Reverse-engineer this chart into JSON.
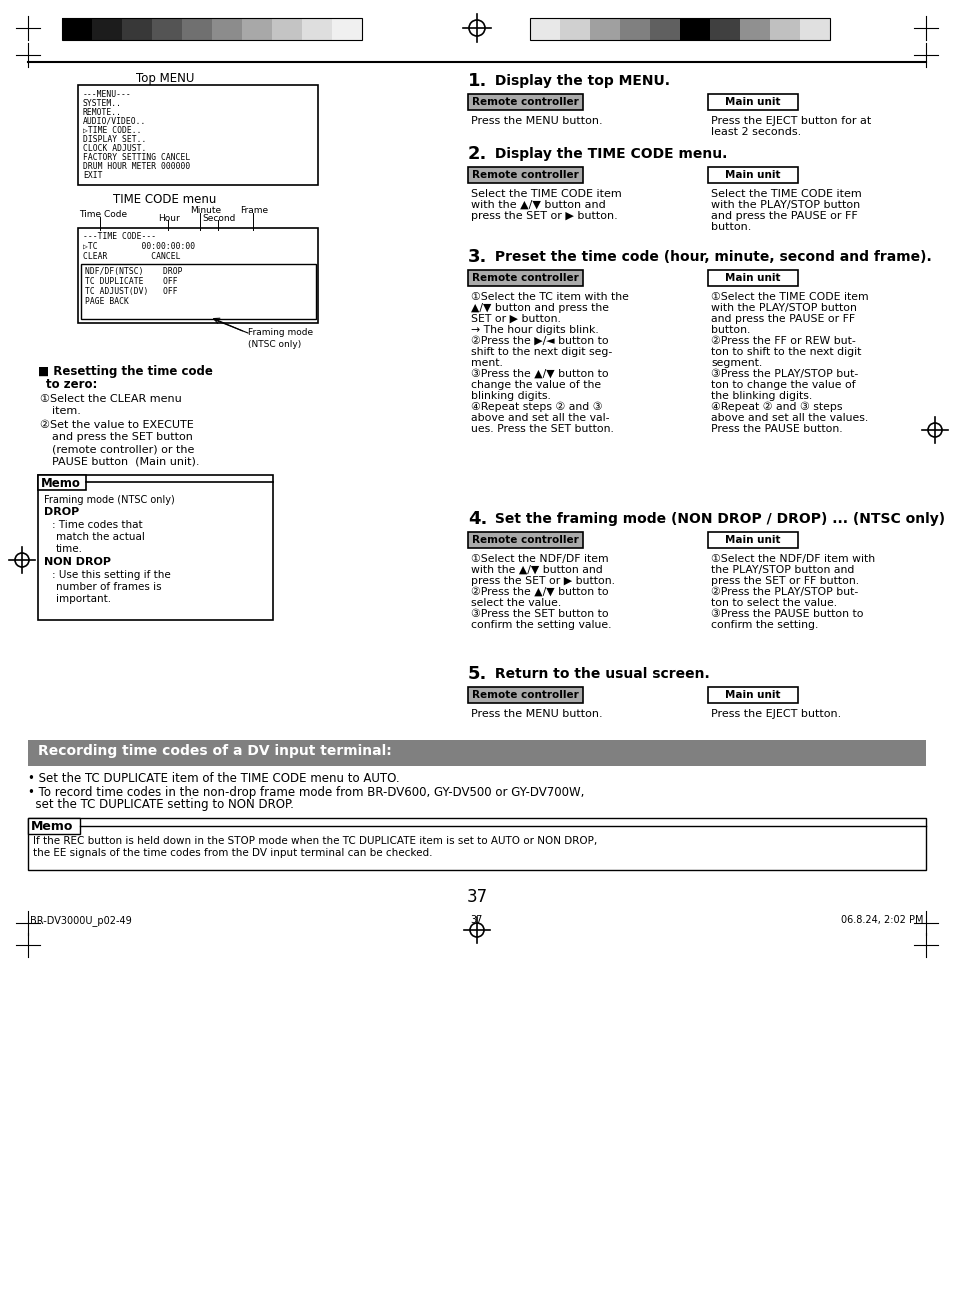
{
  "page_number": "37",
  "footer_left": "BR-DV3000U_p02-49",
  "footer_center": "37",
  "footer_right": "06.8.24, 2:02 PM",
  "top_menu_label": "Top MENU",
  "time_code_menu_label": "TIME CODE menu",
  "step1_title": "1.",
  "step1_title2": "Display the top MENU.",
  "step2_title": "2.",
  "step2_title2": "Display the TIME CODE menu.",
  "step3_title": "3.",
  "step3_title2": "Preset the time code (hour, minute, second and frame).",
  "step4_title": "4.",
  "step4_title2": "Set the framing mode (NON DROP / DROP) ... (NTSC only)",
  "step5_title": "5.",
  "step5_title2": "Return to the usual screen.",
  "rc_label": "Remote controller",
  "mu_label": "Main unit",
  "bottom_bar_title": "Recording time codes of a DV input terminal:",
  "bottom_bullet1": "• Set the TC DUPLICATE item of the TIME CODE menu to AUTO.",
  "bottom_bullet2a": "• To record time codes in the non-drop frame mode from BR-DV600, GY-DV500 or GY-DV700W,",
  "bottom_bullet2b": "  set the TC DUPLICATE setting to NON DROP.",
  "bottom_memo_title": "Memo",
  "bottom_memo_line1": "If the REC button is held down in the STOP mode when the TC DUPLICATE item is set to AUTO or NON DROP,",
  "bottom_memo_line2": "the EE signals of the time codes from the DV input terminal can be checked.",
  "bar_colors_left": [
    "#000000",
    "#222222",
    "#444444",
    "#666666",
    "#888888",
    "#aaaaaa",
    "#cccccc",
    "#dddddd",
    "#eeeeee",
    "#f5f5f5"
  ],
  "bar_colors_right": [
    "#eeeeee",
    "#dddddd",
    "#aaaaaa",
    "#888888",
    "#444444",
    "#000000",
    "#222222",
    "#888888",
    "#cccccc",
    "#eeeeee"
  ],
  "gray_banner_color": "#808080"
}
